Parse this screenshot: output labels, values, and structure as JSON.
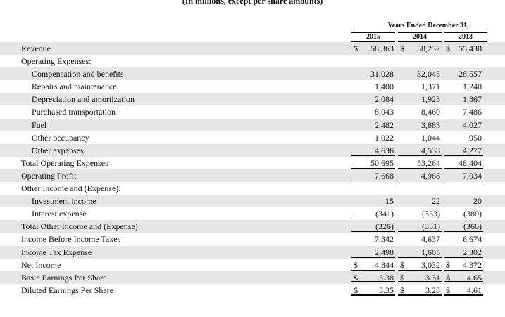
{
  "caption": "(In millions, except per share amounts)",
  "header": {
    "title": "Years Ended December 31,",
    "years": [
      "2015",
      "2014",
      "2013"
    ]
  },
  "rows": [
    {
      "label": "Revenue",
      "indent": 0,
      "shaded": true,
      "values": [
        "58,363",
        "58,232",
        "55,438"
      ],
      "dollar": true,
      "border": "top-none"
    },
    {
      "label": "Operating Expenses:",
      "indent": 0,
      "shaded": false,
      "values": [
        "",
        "",
        ""
      ]
    },
    {
      "label": "Compensation and benefits",
      "indent": 1,
      "shaded": true,
      "values": [
        "31,028",
        "32,045",
        "28,557"
      ]
    },
    {
      "label": "Repairs and maintenance",
      "indent": 1,
      "shaded": false,
      "values": [
        "1,400",
        "1,371",
        "1,240"
      ]
    },
    {
      "label": "Depreciation and amortization",
      "indent": 1,
      "shaded": true,
      "values": [
        "2,084",
        "1,923",
        "1,867"
      ]
    },
    {
      "label": "Purchased transportation",
      "indent": 1,
      "shaded": false,
      "values": [
        "8,043",
        "8,460",
        "7,486"
      ]
    },
    {
      "label": "Fuel",
      "indent": 1,
      "shaded": true,
      "values": [
        "2,482",
        "3,883",
        "4,027"
      ]
    },
    {
      "label": "Other occupancy",
      "indent": 1,
      "shaded": false,
      "values": [
        "1,022",
        "1,044",
        "950"
      ]
    },
    {
      "label": "Other expenses",
      "indent": 1,
      "shaded": true,
      "values": [
        "4,636",
        "4,538",
        "4,277"
      ]
    },
    {
      "label": "Total Operating Expenses",
      "indent": 0,
      "shaded": false,
      "values": [
        "50,695",
        "53,264",
        "48,404"
      ]
    },
    {
      "label": "Operating Profit",
      "indent": 0,
      "shaded": true,
      "values": [
        "7,668",
        "4,968",
        "7,034"
      ]
    },
    {
      "label": "Other Income and (Expense):",
      "indent": 0,
      "shaded": false,
      "values": [
        "",
        "",
        ""
      ]
    },
    {
      "label": "Investment income",
      "indent": 1,
      "shaded": true,
      "values": [
        "15",
        "22",
        "20"
      ]
    },
    {
      "label": "Interest expense",
      "indent": 1,
      "shaded": false,
      "values": [
        "(341)",
        "(353)",
        "(380)"
      ]
    },
    {
      "label": "Total Other Income and (Expense)",
      "indent": 0,
      "shaded": true,
      "values": [
        "(326)",
        "(331)",
        "(360)"
      ]
    },
    {
      "label": "Income Before Income Taxes",
      "indent": 0,
      "shaded": false,
      "values": [
        "7,342",
        "4,637",
        "6,674"
      ]
    },
    {
      "label": "Income Tax Expense",
      "indent": 0,
      "shaded": true,
      "values": [
        "2,498",
        "1,605",
        "2,302"
      ]
    },
    {
      "label": "Net Income",
      "indent": 0,
      "shaded": false,
      "values": [
        "4,844",
        "3,032",
        "4,372"
      ],
      "dollar": true
    },
    {
      "label": "Basic Earnings Per Share",
      "indent": 0,
      "shaded": true,
      "values": [
        "5.38",
        "3.31",
        "4.65"
      ],
      "dollar": true
    },
    {
      "label": "Diluted Earnings Per Share",
      "indent": 0,
      "shaded": false,
      "values": [
        "5.35",
        "3.28",
        "4.61"
      ],
      "dollar": true
    }
  ],
  "dollar_sign": "$"
}
